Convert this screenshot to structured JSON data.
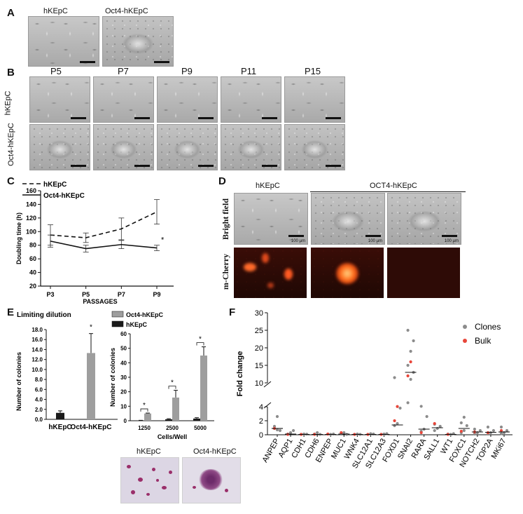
{
  "panels": {
    "A": "A",
    "B": "B",
    "C": "C",
    "D": "D",
    "E": "E",
    "F": "F"
  },
  "panel_a": {
    "labels": [
      "hKEpC",
      "Oct4-hKEpC"
    ]
  },
  "panel_b": {
    "passages": [
      "P5",
      "P7",
      "P9",
      "P11",
      "P15"
    ],
    "rows": [
      "hKEpC",
      "Oct4-hKEpC"
    ]
  },
  "panel_d": {
    "col_labels": [
      "hKEpC",
      "OCT4-hKEpC"
    ],
    "row_labels": [
      "Bright field",
      "m-Cherry"
    ],
    "scale_bars": [
      "100 µm",
      "100 µm",
      "100 µm"
    ]
  },
  "panel_e": {
    "images": [
      "hKEpC",
      "Oct4-hKEpC"
    ]
  },
  "chart_data": [
    {
      "id": "C",
      "type": "line",
      "x": [
        "P3",
        "P5",
        "P7",
        "P9"
      ],
      "xlabel": "PASSAGES",
      "ylabel": "Doubling time (h)",
      "ylim": [
        20,
        160
      ],
      "yticks": [
        20,
        40,
        60,
        80,
        100,
        120,
        140,
        160
      ],
      "legend_position": "top-left",
      "series": [
        {
          "name": "hKEpC",
          "style": "dashed",
          "values": [
            95,
            91,
            104,
            129
          ],
          "errors": [
            15,
            7,
            16,
            18
          ]
        },
        {
          "name": "Oct4-hKEpC",
          "style": "solid",
          "values": [
            86,
            75,
            81,
            76
          ],
          "errors": [
            9,
            5,
            6,
            4
          ]
        }
      ],
      "annotations": [
        {
          "x": "P9",
          "text": "*"
        }
      ]
    },
    {
      "id": "E-left",
      "type": "bar",
      "title": "Limiting dilution",
      "categories": [
        "hKEpC",
        "Oct4-hKEpC"
      ],
      "values": [
        1.3,
        13.3
      ],
      "errors": [
        0.4,
        3.9
      ],
      "colors": [
        "#1a1a1a",
        "#9e9e9e"
      ],
      "ylabel": "Number of colonies",
      "ylim": [
        0,
        18
      ],
      "yticks": [
        "0.0",
        "2.0",
        "4.0",
        "6.0",
        "8.0",
        "10.0",
        "12.0",
        "14.0",
        "16.0",
        "18.0"
      ],
      "annotations": [
        {
          "category": "Oct4-hKEpC",
          "text": "*"
        }
      ]
    },
    {
      "id": "E-right",
      "type": "bar",
      "categories": [
        "1250",
        "2500",
        "5000"
      ],
      "xlabel": "Cells/Well",
      "ylabel": "Number of colonies",
      "ylim": [
        0,
        60
      ],
      "yticks": [
        0,
        10,
        20,
        30,
        40,
        50,
        60
      ],
      "legend_position": "top-left",
      "series": [
        {
          "name": "Oct4-hKEpC",
          "color": "#9e9e9e",
          "values": [
            5,
            16,
            45
          ],
          "errors": [
            0.3,
            5,
            6
          ]
        },
        {
          "name": "hKEpC",
          "color": "#1a1a1a",
          "values": [
            0.2,
            1,
            1.5
          ],
          "errors": [
            0.1,
            0.4,
            0.6
          ]
        }
      ],
      "significance": [
        "*",
        "*",
        "*"
      ]
    },
    {
      "id": "F",
      "type": "scatter",
      "categories": [
        "ANPEP",
        "AQP1",
        "CDH1",
        "CDH6",
        "ENPEP",
        "MUC1",
        "WNK4",
        "SLC12A1",
        "SLC12A3",
        "FOXD1",
        "SNAI2",
        "RARA",
        "SALL1",
        "WT1",
        "FOXC1",
        "NOTCH2",
        "TOP2A",
        "MKi67"
      ],
      "ylabel": "Fold change",
      "y_axis_break": [
        4,
        10
      ],
      "yticks_lower": [
        0,
        2,
        4
      ],
      "yticks_upper": [
        10,
        15,
        20,
        25,
        30
      ],
      "legend_position": "top-right",
      "series": [
        {
          "name": "Clones",
          "color": "#8c8c8c",
          "points": [
            [
              [
                0.9,
                0.7,
                0.6,
                1.2,
                2.6
              ],
              [
                0.1,
                0.3,
                0.6
              ],
              [
                0.05,
                0.1,
                0.08
              ],
              [
                0.1,
                0.3,
                0.05
              ],
              [
                0.1,
                0.05,
                0.1
              ],
              [
                0.1,
                0.3,
                0.05
              ],
              [
                0.05,
                0.1,
                0.05
              ],
              [
                0.05,
                0.15,
                0.1
              ],
              [
                0.05,
                0.1,
                0.15
              ],
              [
                1.3,
                1.6,
                3.8,
                11.5
              ],
              [
                9,
                11,
                13,
                15,
                19,
                22,
                25
              ],
              [
                0.5,
                0.8,
                2.6,
                4.5
              ],
              [
                0.6,
                0.9,
                1.2,
                1.5
              ],
              [
                0.1,
                0.05,
                0.15
              ],
              [
                0.3,
                0.6,
                1.3,
                1.7,
                2.5
              ],
              [
                0.1,
                0.3,
                0.6,
                0.8
              ],
              [
                0.1,
                0.3,
                0.6,
                1.1
              ],
              [
                0.15,
                0.3,
                0.6,
                1.1
              ]
            ]
          ]
        },
        {
          "name": "Bulk",
          "color": "#e8463a",
          "points": [
            [
              [
                0.9
              ],
              [
                0.05
              ],
              [
                0.05
              ],
              [
                0.05
              ],
              [
                0.1
              ],
              [
                0.3
              ],
              [
                0.05
              ],
              [
                0.05
              ],
              [
                0.05
              ],
              [
                2.0,
                4.2
              ],
              [
                12,
                16
              ],
              [
                0.3
              ],
              [
                1.6
              ],
              [
                0.05
              ],
              [
                0.5
              ],
              [
                0.4
              ],
              [
                0.3
              ],
              [
                0.6
              ]
            ]
          ]
        }
      ],
      "medians": [
        0.9,
        0.1,
        0.05,
        0.05,
        0.05,
        0.1,
        0.05,
        0.05,
        0.05,
        1.4,
        13,
        0.8,
        1.0,
        0.05,
        0.9,
        0.4,
        0.35,
        0.4
      ]
    }
  ]
}
